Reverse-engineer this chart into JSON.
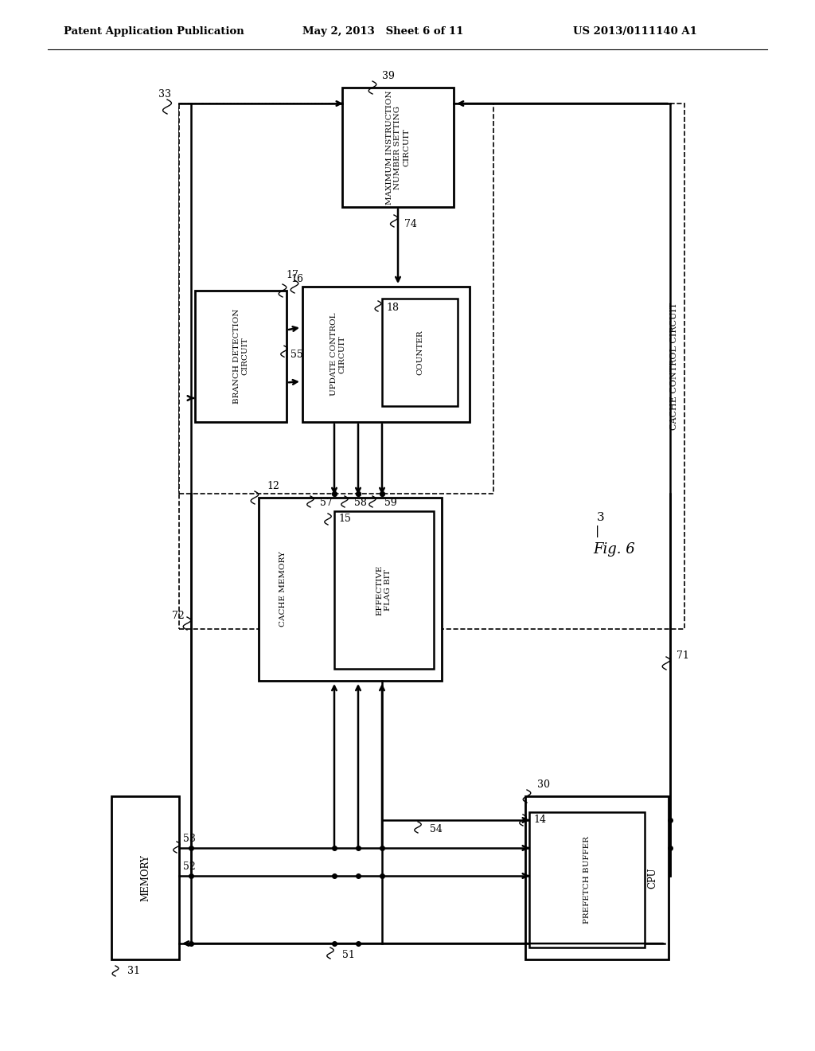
{
  "title_left": "Patent Application Publication",
  "title_mid": "May 2, 2013   Sheet 6 of 11",
  "title_right": "US 2013/0111140 A1",
  "fig_label": "Fig. 6",
  "fig_number": "3",
  "bg_color": "#ffffff"
}
